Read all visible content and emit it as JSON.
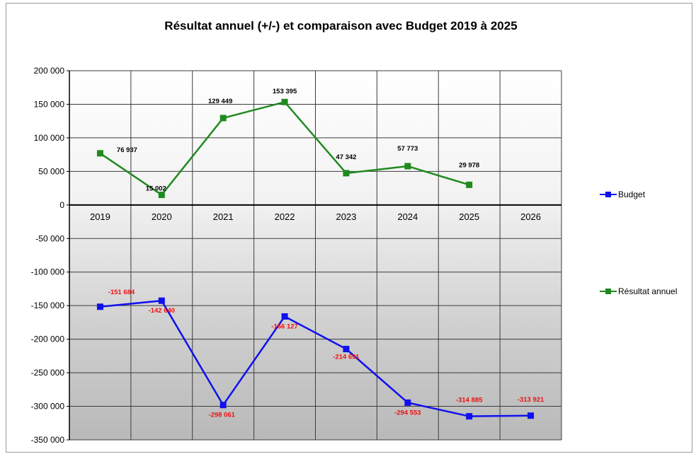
{
  "chart_data": {
    "type": "line",
    "title": "Résultat annuel (+/-) et comparaison avec Budget 2019 à 2025",
    "categories": [
      "2019",
      "2020",
      "2021",
      "2022",
      "2023",
      "2024",
      "2025",
      "2026"
    ],
    "ylim": [
      -350000,
      200000
    ],
    "yticks": [
      200000,
      150000,
      100000,
      50000,
      0,
      -50000,
      -100000,
      -150000,
      -200000,
      -250000,
      -300000,
      -350000
    ],
    "ytick_labels": [
      "200 000",
      "150 000",
      "100 000",
      "50 000",
      "0",
      "-50 000",
      "-100 000",
      "-150 000",
      "-200 000",
      "-250 000",
      "-300 000",
      "-350 000"
    ],
    "grid": true,
    "legend_position": "right",
    "series": [
      {
        "name": "Budget",
        "color": "#1010ee",
        "label_color": "#ee1111",
        "values": [
          -151684,
          -142640,
          -298061,
          -166127,
          -214691,
          -294553,
          -314885,
          -313921
        ],
        "labels": [
          "-151 684",
          "-142 640",
          "-298 061",
          "-166 127",
          "-214 691",
          "-294 553",
          "-314 885",
          "-313 921"
        ]
      },
      {
        "name": "Résultat annuel",
        "color": "#1e8a1e",
        "label_color": "#000000",
        "values": [
          76937,
          15002,
          129449,
          153395,
          47342,
          57773,
          29978,
          null
        ],
        "labels": [
          "76 937",
          "15 002",
          "129 449",
          "153 395",
          "47 342",
          "57 773",
          "29 978",
          null
        ]
      }
    ]
  }
}
